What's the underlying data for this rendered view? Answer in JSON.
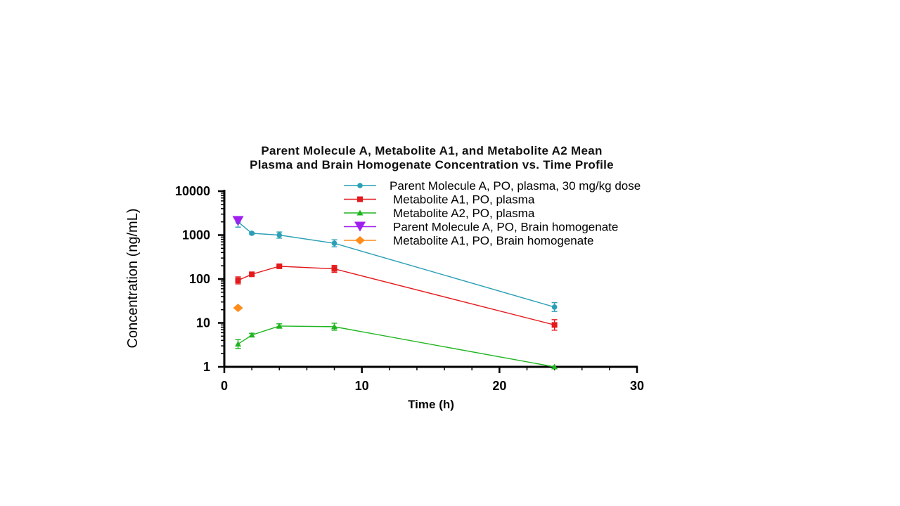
{
  "chart_data": {
    "type": "line",
    "title_lines": [
      "Parent Molecule A, Metabolite A1, and Metabolite A2 Mean",
      "Plasma and Brain Homogenate Concentration vs. Time Profile"
    ],
    "xlabel": "Time (h)",
    "ylabel": "Concentration (ng/mL)",
    "xlim": [
      0,
      30
    ],
    "ylim": [
      1,
      10000
    ],
    "yscale": "log",
    "x_ticks": [
      "0",
      "10",
      "20",
      "30"
    ],
    "y_ticks": [
      "1",
      "10",
      "100",
      "1000",
      "10000"
    ],
    "legend_position": "top-right",
    "series": [
      {
        "name": "Parent Molecule A, PO, plasma, 30 mg/kg dose",
        "color": "#2a9fb5",
        "marker": "circle",
        "x": [
          1,
          2,
          4,
          8,
          24
        ],
        "y": [
          2000,
          1100,
          1000,
          650,
          23
        ],
        "err": [
          0.12,
          0.02,
          0.07,
          0.08,
          0.1
        ]
      },
      {
        "name": "Metabolite A1, PO, plasma",
        "color": "#e31a1c",
        "marker": "square",
        "x": [
          1,
          2,
          4,
          8,
          24
        ],
        "y": [
          93,
          128,
          195,
          170,
          9
        ],
        "err": [
          0.08,
          0.02,
          0.03,
          0.08,
          0.12
        ]
      },
      {
        "name": "Metabolite A2, PO, plasma",
        "color": "#1fb51f",
        "marker": "triangle-up",
        "x": [
          1,
          2,
          4,
          8,
          24
        ],
        "y": [
          3.3,
          5.3,
          8.5,
          8.2,
          1
        ],
        "err": [
          0.1,
          0.04,
          0.05,
          0.08,
          0.0
        ]
      },
      {
        "name": "Parent Molecule A, PO, Brain homogenate",
        "color": "#a020f0",
        "marker": "triangle-down",
        "x": [
          1
        ],
        "y": [
          2100
        ],
        "err": [
          0
        ]
      },
      {
        "name": "Metabolite A1, PO, Brain homogenate",
        "color": "#ff8c1a",
        "marker": "diamond",
        "x": [
          1
        ],
        "y": [
          22
        ],
        "err": [
          0
        ]
      }
    ]
  }
}
